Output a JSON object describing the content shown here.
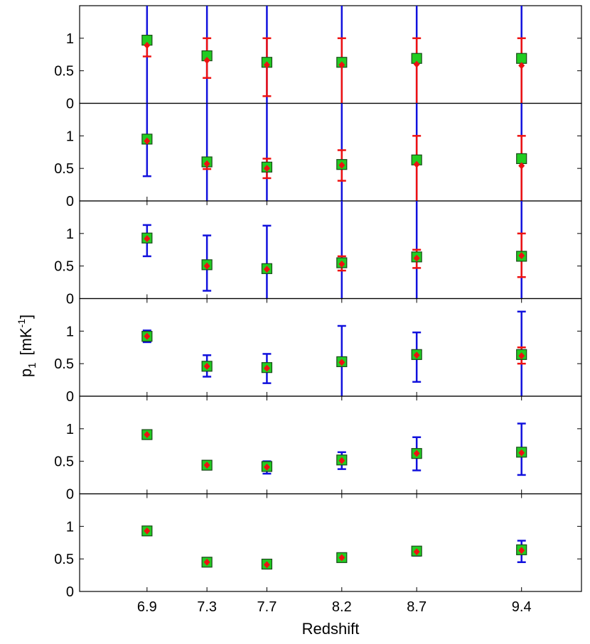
{
  "chart_data": {
    "type": "scatter",
    "xlabel": "Redshift",
    "ylabel_main": "p",
    "ylabel_sub": "1",
    "ylabel_unit_open": "[mK",
    "ylabel_unit_sup": "-1",
    "ylabel_unit_close": "]",
    "x": [
      6.9,
      7.3,
      7.7,
      8.2,
      8.7,
      9.4
    ],
    "x_tick_labels": [
      "6.9",
      "7.3",
      "7.7",
      "8.2",
      "8.7",
      "9.4"
    ],
    "xlim": [
      6.45,
      9.8
    ],
    "ylim": [
      0,
      1.5
    ],
    "y_tick_labels": [
      "0",
      "0.5",
      "1"
    ],
    "colors": {
      "square_fill": "#22cc22",
      "square_edge": "#1a4a1a",
      "diamond": "#ee1111",
      "red_bar": "#ee1111",
      "blue_bar": "#1111dd"
    },
    "panels": [
      {
        "square": [
          0.97,
          0.73,
          0.63,
          0.63,
          0.69,
          0.69
        ],
        "diamond": [
          0.89,
          0.66,
          0.59,
          0.59,
          0.6,
          0.58
        ],
        "red_err": [
          [
            0.72,
            1.0
          ],
          [
            0.39,
            1.0
          ],
          [
            0.11,
            1.0
          ],
          [
            0.0,
            1.0
          ],
          [
            0.0,
            1.0
          ],
          [
            0.0,
            1.0
          ]
        ],
        "blue_err": [
          [
            0.0,
            1.5
          ],
          [
            0.0,
            1.5
          ],
          [
            0.0,
            1.5
          ],
          [
            0.0,
            1.5
          ],
          [
            0.0,
            1.5
          ],
          [
            0.0,
            1.5
          ]
        ]
      },
      {
        "square": [
          0.95,
          0.6,
          0.52,
          0.56,
          0.63,
          0.65
        ],
        "diamond": [
          0.92,
          0.57,
          0.5,
          0.55,
          0.56,
          0.54
        ],
        "red_err": [
          [
            0.92,
            0.92
          ],
          [
            0.49,
            0.66
          ],
          [
            0.35,
            0.65
          ],
          [
            0.31,
            0.78
          ],
          [
            0.0,
            1.0
          ],
          [
            0.0,
            1.0
          ]
        ],
        "blue_err": [
          [
            0.38,
            1.5
          ],
          [
            0.0,
            1.5
          ],
          [
            0.0,
            1.5
          ],
          [
            0.0,
            1.5
          ],
          [
            0.0,
            1.5
          ],
          [
            0.0,
            1.5
          ]
        ]
      },
      {
        "square": [
          0.93,
          0.52,
          0.46,
          0.55,
          0.64,
          0.65
        ],
        "diamond": [
          0.92,
          0.5,
          0.45,
          0.53,
          0.62,
          0.66
        ],
        "red_err": [
          [
            0.92,
            0.92
          ],
          [
            0.5,
            0.5
          ],
          [
            0.45,
            0.45
          ],
          [
            0.43,
            0.65
          ],
          [
            0.47,
            0.75
          ],
          [
            0.33,
            1.0
          ]
        ],
        "blue_err": [
          [
            0.65,
            1.13
          ],
          [
            0.12,
            0.97
          ],
          [
            0.0,
            1.12
          ],
          [
            0.0,
            1.5
          ],
          [
            0.0,
            1.5
          ],
          [
            0.0,
            1.5
          ]
        ]
      },
      {
        "square": [
          0.92,
          0.46,
          0.44,
          0.53,
          0.64,
          0.64
        ],
        "diamond": [
          0.92,
          0.46,
          0.43,
          0.52,
          0.63,
          0.62
        ],
        "red_err": [
          [
            0.92,
            0.92
          ],
          [
            0.46,
            0.46
          ],
          [
            0.43,
            0.43
          ],
          [
            0.52,
            0.52
          ],
          [
            0.63,
            0.63
          ],
          [
            0.5,
            0.75
          ]
        ],
        "blue_err": [
          [
            0.83,
            1.01
          ],
          [
            0.3,
            0.63
          ],
          [
            0.2,
            0.65
          ],
          [
            0.0,
            1.08
          ],
          [
            0.22,
            0.98
          ],
          [
            0.0,
            1.3
          ]
        ]
      },
      {
        "square": [
          0.91,
          0.44,
          0.42,
          0.52,
          0.62,
          0.64
        ],
        "diamond": [
          0.91,
          0.44,
          0.41,
          0.51,
          0.62,
          0.63
        ],
        "red_err": [
          [
            0.91,
            0.91
          ],
          [
            0.44,
            0.44
          ],
          [
            0.41,
            0.41
          ],
          [
            0.51,
            0.51
          ],
          [
            0.62,
            0.62
          ],
          [
            0.63,
            0.63
          ]
        ],
        "blue_err": [
          [
            0.87,
            0.95
          ],
          [
            0.4,
            0.48
          ],
          [
            0.31,
            0.5
          ],
          [
            0.38,
            0.64
          ],
          [
            0.36,
            0.87
          ],
          [
            0.29,
            1.08
          ]
        ]
      },
      {
        "square": [
          0.93,
          0.45,
          0.42,
          0.52,
          0.62,
          0.64
        ],
        "diamond": [
          0.93,
          0.45,
          0.41,
          0.52,
          0.61,
          0.63
        ],
        "red_err": [
          [
            0.93,
            0.93
          ],
          [
            0.45,
            0.45
          ],
          [
            0.41,
            0.41
          ],
          [
            0.52,
            0.52
          ],
          [
            0.61,
            0.61
          ],
          [
            0.63,
            0.63
          ]
        ],
        "blue_err": [
          [
            0.9,
            0.96
          ],
          [
            0.41,
            0.49
          ],
          [
            0.38,
            0.46
          ],
          [
            0.46,
            0.57
          ],
          [
            0.55,
            0.68
          ],
          [
            0.45,
            0.78
          ]
        ]
      }
    ]
  }
}
